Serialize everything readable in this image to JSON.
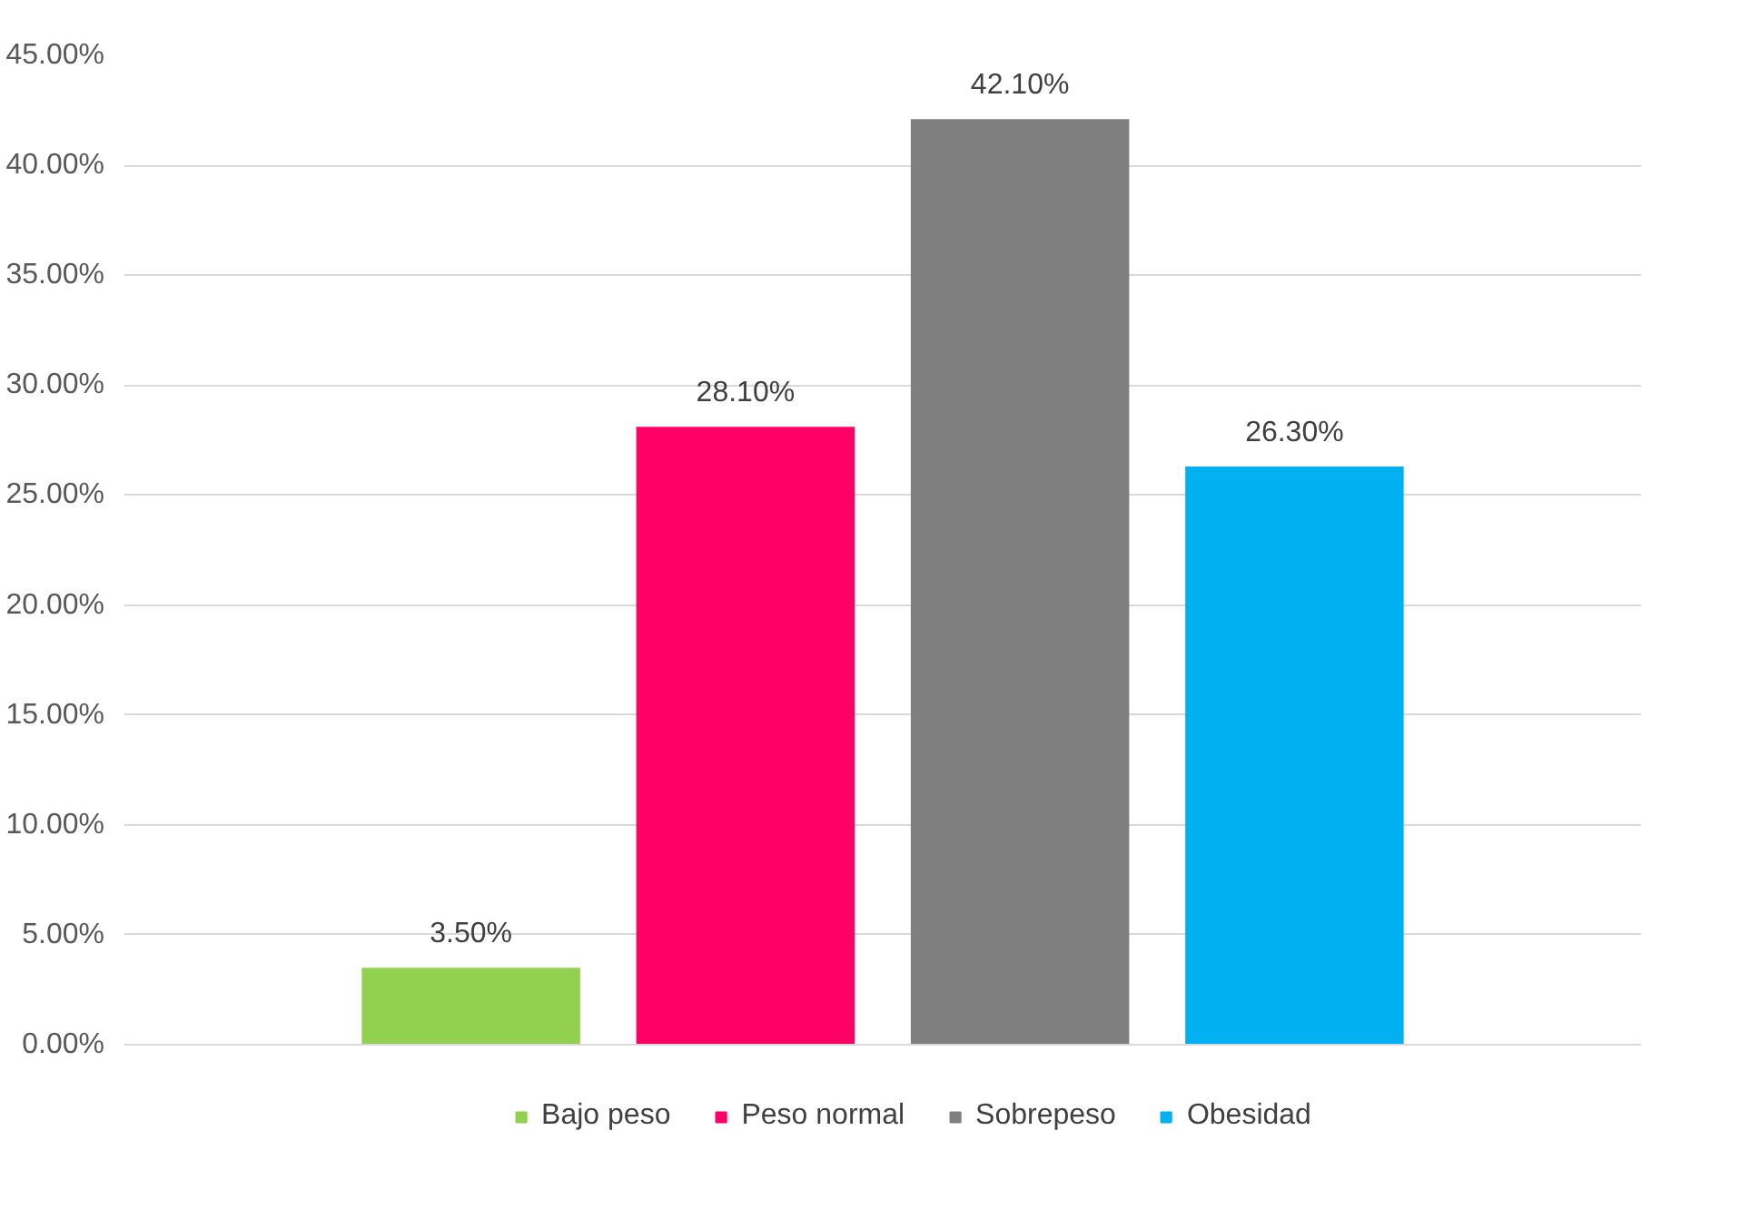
{
  "chart_data": {
    "type": "bar",
    "categories": [
      null
    ],
    "series": [
      {
        "name": "Bajo peso",
        "color": "#92d050",
        "values": [
          3.5
        ],
        "value_labels": [
          "3.50%"
        ]
      },
      {
        "name": "Peso normal",
        "color": "#ff0066",
        "values": [
          28.1
        ],
        "value_labels": [
          "28.10%"
        ]
      },
      {
        "name": "Sobrepeso",
        "color": "#7f7f7f",
        "values": [
          42.1
        ],
        "value_labels": [
          "42.10%"
        ]
      },
      {
        "name": "Obesidad",
        "color": "#00b0f0",
        "values": [
          26.3
        ],
        "value_labels": [
          "26.30%"
        ]
      }
    ],
    "ylim": [
      0,
      45
    ],
    "yticks": [
      {
        "value": 0,
        "label": "0.00%"
      },
      {
        "value": 5,
        "label": "5.00%"
      },
      {
        "value": 10,
        "label": "10.00%"
      },
      {
        "value": 15,
        "label": "15.00%"
      },
      {
        "value": 20,
        "label": "20.00%"
      },
      {
        "value": 25,
        "label": "25.00%"
      },
      {
        "value": 30,
        "label": "30.00%"
      },
      {
        "value": 35,
        "label": "35.00%"
      },
      {
        "value": 40,
        "label": "40.00%"
      },
      {
        "value": 45,
        "label": "45.00%"
      }
    ],
    "grid": "y",
    "legend": "bottom",
    "tick_labels": "y"
  }
}
